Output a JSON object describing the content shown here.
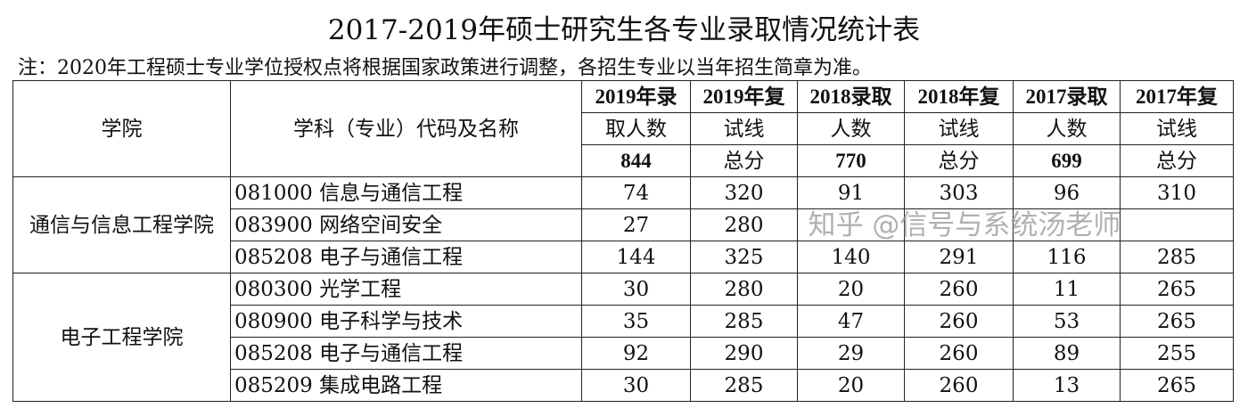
{
  "title": "2017-2019年硕士研究生各专业录取情况统计表",
  "note": "注：2020年工程硕士专业学位授权点将根据国家政策进行调整，各招生专业以当年招生简章为准。",
  "headers": {
    "college": "学院",
    "major": "学科（专业）代码及名称",
    "c1a": "2019年录",
    "c1b": "取人数",
    "c1c": "844",
    "c2a": "2019年复",
    "c2b": "试线",
    "c2c": "总分",
    "c3a": "2018录取",
    "c3b": "人数",
    "c3c": "770",
    "c4a": "2018年复",
    "c4b": "试线",
    "c4c": "总分",
    "c5a": "2017录取",
    "c5b": "人数",
    "c5c": "699",
    "c6a": "2017年复",
    "c6b": "试线",
    "c6c": "总分"
  },
  "groups": [
    {
      "college": "通信与信息工程学院",
      "rows": [
        [
          "081000 信息与通信工程",
          "74",
          "320",
          "91",
          "303",
          "96",
          "310"
        ],
        [
          "083900 网络空间安全",
          "27",
          "280",
          "",
          "",
          "",
          ""
        ],
        [
          "085208 电子与通信工程",
          "144",
          "325",
          "140",
          "291",
          "116",
          "285"
        ]
      ]
    },
    {
      "college": "电子工程学院",
      "rows": [
        [
          "080300 光学工程",
          "30",
          "280",
          "20",
          "260",
          "11",
          "265"
        ],
        [
          "080900 电子科学与技术",
          "35",
          "285",
          "47",
          "260",
          "53",
          "265"
        ],
        [
          "085208 电子与通信工程",
          "92",
          "290",
          "29",
          "260",
          "89",
          "255"
        ],
        [
          "085209 集成电路工程",
          "30",
          "285",
          "20",
          "260",
          "13",
          "265"
        ]
      ]
    }
  ],
  "watermark": "知乎 @信号与系统汤老师"
}
